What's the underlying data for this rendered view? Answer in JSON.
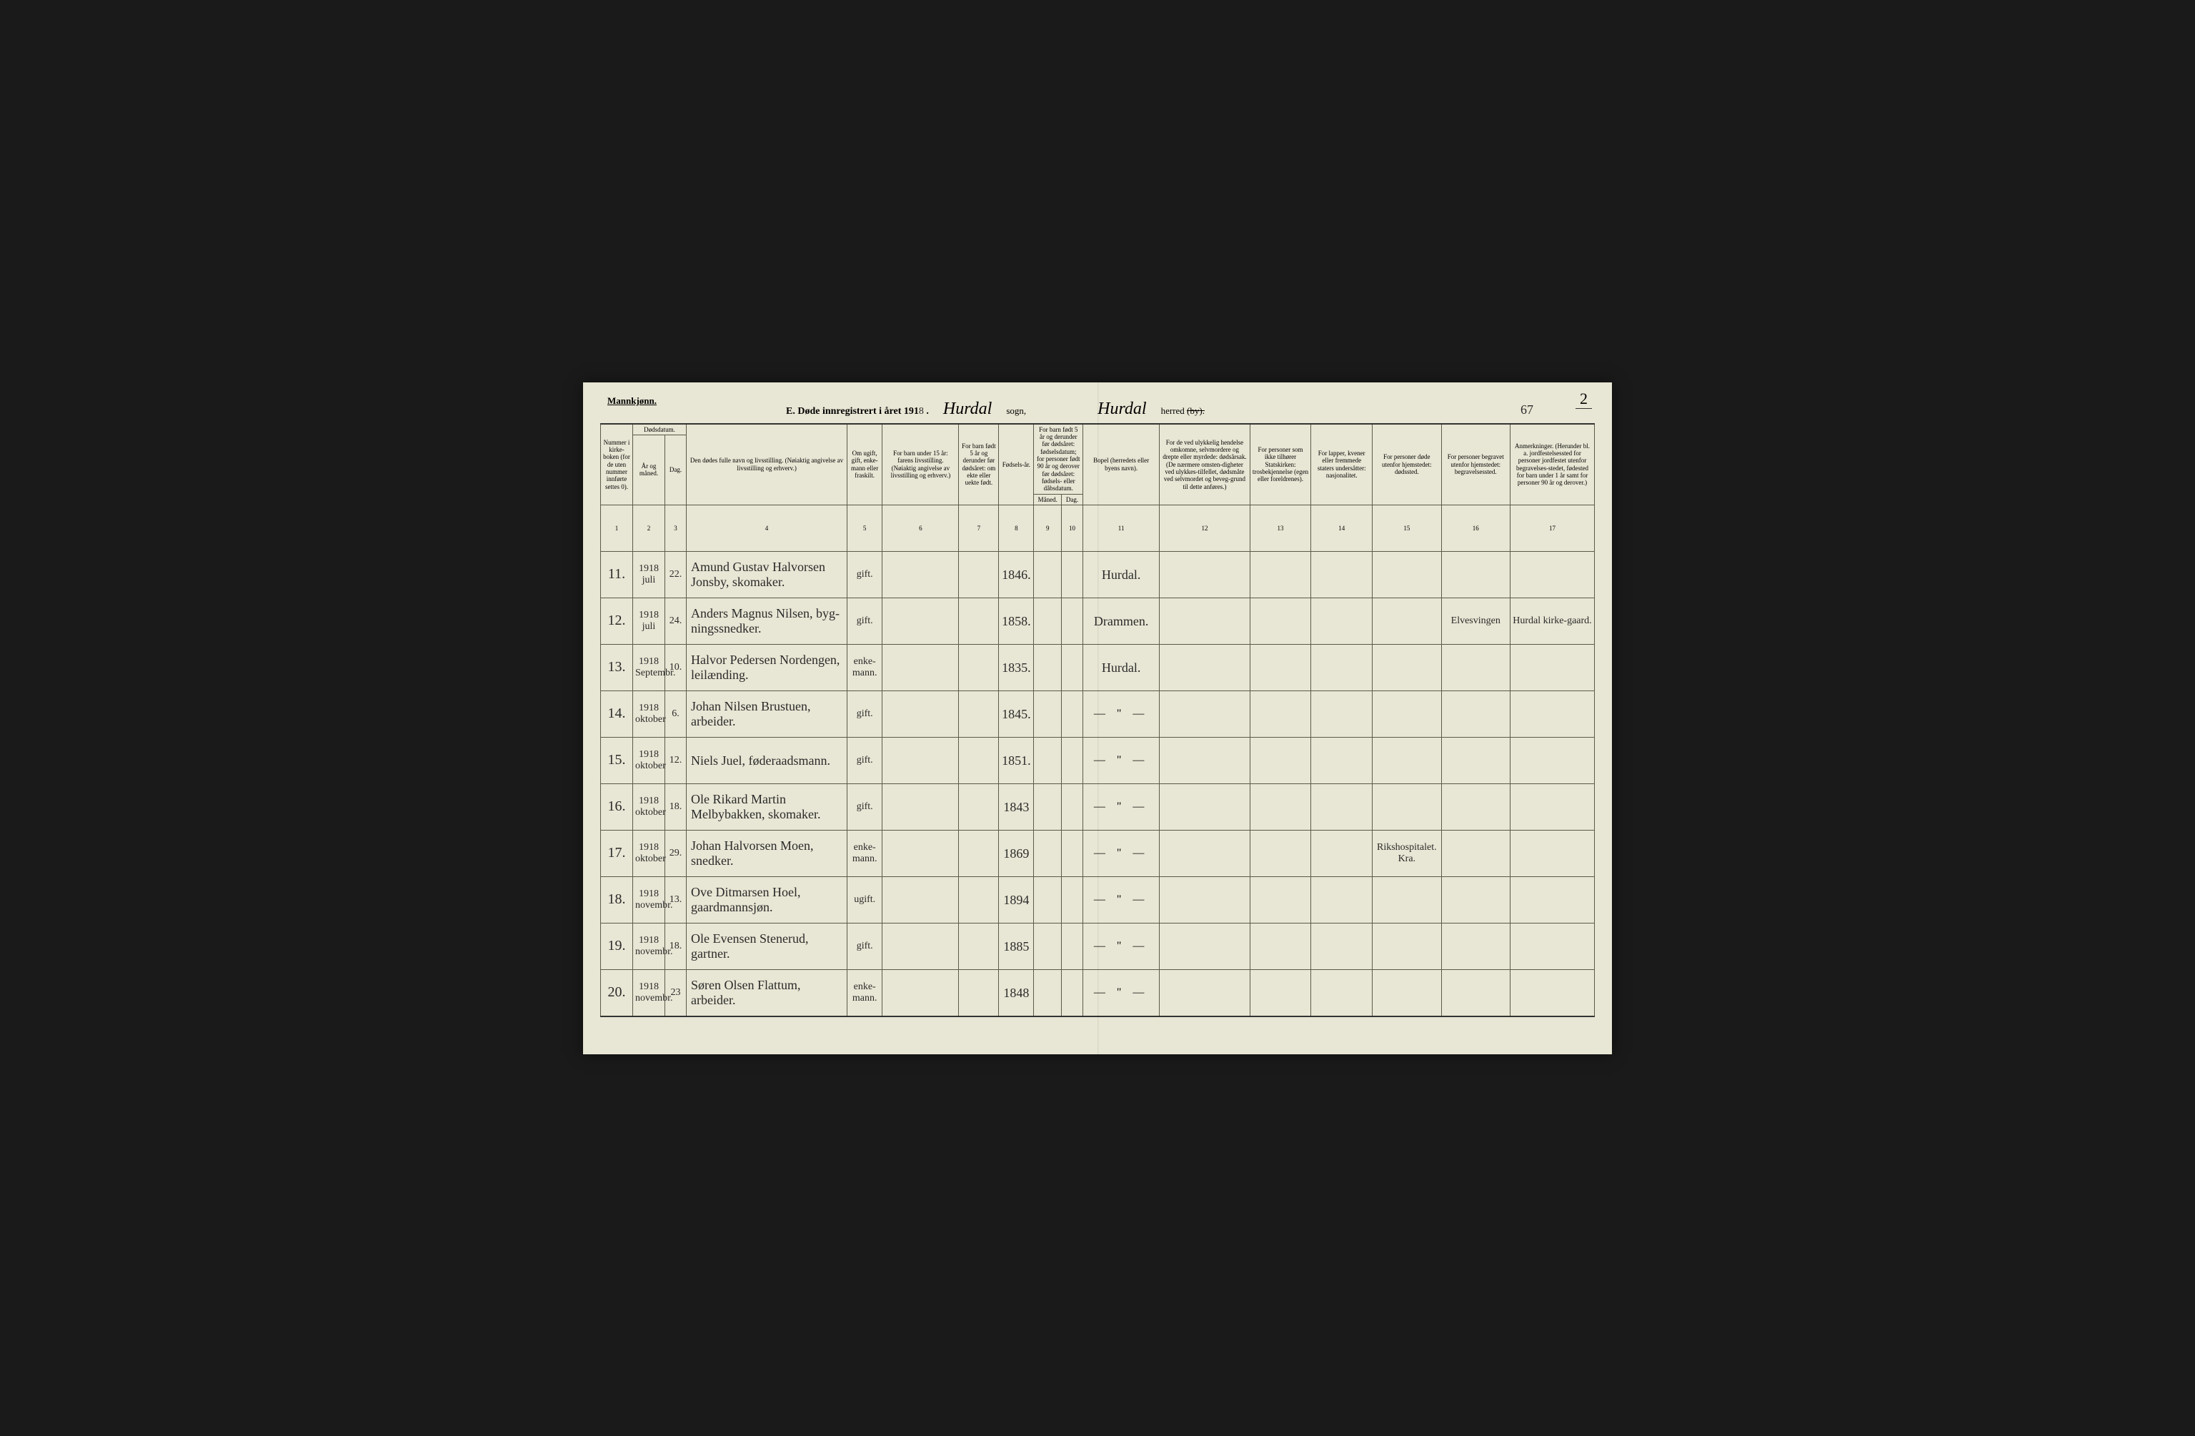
{
  "header": {
    "gender": "Mannkjønn.",
    "title_prefix": "E. Døde innregistrert i året 191",
    "title_year_digit": "8",
    "title_dot": " .",
    "sogn_script": "Hurdal",
    "sogn_label": "sogn,",
    "herred_script": "Hurdal",
    "herred_label": "herred",
    "by_struck": "(by).",
    "page_top": "2",
    "big_number": "67"
  },
  "columns": {
    "c1": "Nummer i kirke-boken (for de uten nummer innførte settes 0).",
    "c2a": "Dødsdatum.",
    "c2_year": "År og måned.",
    "c2_day": "Dag.",
    "c4": "Den dødes fulle navn og livsstilling. (Nøiaktig angivelse av livsstilling og erhverv.)",
    "c5": "Om ugift, gift, enke-mann eller fraskilt.",
    "c6": "For barn under 15 år: farens livsstilling. (Nøiaktig angivelse av livsstilling og erhverv.)",
    "c7": "For barn født 5 år og derunder før dødsåret: om ekte eller uekte født.",
    "c8": "Fødsels-år.",
    "c9": "For barn født 5 år og derunder før dødsåret: fødselsdatum; for personer født 90 år og derover før dødsåret: fødsels- eller dåbsdatum.",
    "c9m": "Måned.",
    "c9d": "Dag.",
    "c11": "Bopel (herredets eller byens navn).",
    "c12": "For de ved ulykkelig hendelse omkomne, selvmordere og drepte eller myrdede: dødsårsak. (De nærmere omsten-digheter ved ulykkes-tilfellet, dødsmåte ved selvmordet og beveg-grund til dette anføres.)",
    "c13": "For personer som ikke tilhører Statskirken: trosbekjennelse (egen eller foreldrenes).",
    "c14": "For lapper, kvener eller fremmede staters undersåtter: nasjonalitet.",
    "c15": "For personer døde utenfor hjemstedet: dødssted.",
    "c16": "For personer begravet utenfor hjemstedet: begravelsessted.",
    "c17": "Anmerkninger. (Herunder bl. a. jordfestelsessted for personer jordfestet utenfor begravelses-stedet, fødested for barn under 1 år samt for personer 90 år og derover.)"
  },
  "colnums": [
    "1",
    "2",
    "3",
    "4",
    "5",
    "6",
    "7",
    "8",
    "9",
    "10",
    "11",
    "12",
    "13",
    "14",
    "15",
    "16",
    "17"
  ],
  "rows": [
    {
      "num": "11.",
      "ym": "1918 juli",
      "day": "22.",
      "name": "Amund Gustav Halvorsen Jonsby, skomaker.",
      "stat": "gift.",
      "c6": "",
      "c7": "",
      "year": "1846.",
      "c9m": "",
      "c9d": "",
      "bopel": "Hurdal.",
      "c12": "",
      "c13": "",
      "c14": "",
      "c15": "",
      "c16": "",
      "c17": ""
    },
    {
      "num": "12.",
      "ym": "1918 juli",
      "day": "24.",
      "name": "Anders Magnus Nilsen, byg-ningssnedker.",
      "stat": "gift.",
      "c6": "",
      "c7": "",
      "year": "1858.",
      "c9m": "",
      "c9d": "",
      "bopel": "Drammen.",
      "c12": "",
      "c13": "",
      "c14": "",
      "c15": "",
      "c16": "Elvesvingen",
      "c17": "Hurdal kirke-gaard."
    },
    {
      "num": "13.",
      "ym": "1918 Septembr.",
      "day": "10.",
      "name": "Halvor Pedersen Nordengen, leilænding.",
      "stat": "enke-mann.",
      "c6": "",
      "c7": "",
      "year": "1835.",
      "c9m": "",
      "c9d": "",
      "bopel": "Hurdal.",
      "c12": "",
      "c13": "",
      "c14": "",
      "c15": "",
      "c16": "",
      "c17": ""
    },
    {
      "num": "14.",
      "ym": "1918 oktober",
      "day": "6.",
      "name": "Johan Nilsen Brustuen, arbeider.",
      "stat": "gift.",
      "c6": "",
      "c7": "",
      "year": "1845.",
      "c9m": "",
      "c9d": "",
      "bopel": "— \" —",
      "c12": "",
      "c13": "",
      "c14": "",
      "c15": "",
      "c16": "",
      "c17": ""
    },
    {
      "num": "15.",
      "ym": "1918 oktober",
      "day": "12.",
      "name": "Niels Juel, føderaadsmann.",
      "stat": "gift.",
      "c6": "",
      "c7": "",
      "year": "1851.",
      "c9m": "",
      "c9d": "",
      "bopel": "— \" —",
      "c12": "",
      "c13": "",
      "c14": "",
      "c15": "",
      "c16": "",
      "c17": ""
    },
    {
      "num": "16.",
      "ym": "1918 oktober",
      "day": "18.",
      "name": "Ole Rikard Martin Melbybakken, skomaker.",
      "stat": "gift.",
      "c6": "",
      "c7": "",
      "year": "1843",
      "c9m": "",
      "c9d": "",
      "bopel": "— \" —",
      "c12": "",
      "c13": "",
      "c14": "",
      "c15": "",
      "c16": "",
      "c17": ""
    },
    {
      "num": "17.",
      "ym": "1918 oktober",
      "day": "29.",
      "name": "Johan Halvorsen Moen, snedker.",
      "stat": "enke-mann.",
      "c6": "",
      "c7": "",
      "year": "1869",
      "c9m": "",
      "c9d": "",
      "bopel": "— \" —",
      "c12": "",
      "c13": "",
      "c14": "",
      "c15": "Rikshospitalet. Kra.",
      "c16": "",
      "c17": ""
    },
    {
      "num": "18.",
      "ym": "1918 novembr.",
      "day": "13.",
      "name": "Ove Ditmarsen Hoel, gaardmannsjøn.",
      "stat": "ugift.",
      "c6": "",
      "c7": "",
      "year": "1894",
      "c9m": "",
      "c9d": "",
      "bopel": "— \" —",
      "c12": "",
      "c13": "",
      "c14": "",
      "c15": "",
      "c16": "",
      "c17": ""
    },
    {
      "num": "19.",
      "ym": "1918 novembr.",
      "day": "18.",
      "name": "Ole Evensen Stenerud, gartner.",
      "stat": "gift.",
      "c6": "",
      "c7": "",
      "year": "1885",
      "c9m": "",
      "c9d": "",
      "bopel": "— \" —",
      "c12": "",
      "c13": "",
      "c14": "",
      "c15": "",
      "c16": "",
      "c17": ""
    },
    {
      "num": "20.",
      "ym": "1918 novembr.",
      "day": "23",
      "name": "Søren Olsen Flattum, arbeider.",
      "stat": "enke-mann.",
      "c6": "",
      "c7": "",
      "year": "1848",
      "c9m": "",
      "c9d": "",
      "bopel": "— \" —",
      "c12": "",
      "c13": "",
      "c14": "",
      "c15": "",
      "c16": "",
      "c17": ""
    }
  ]
}
